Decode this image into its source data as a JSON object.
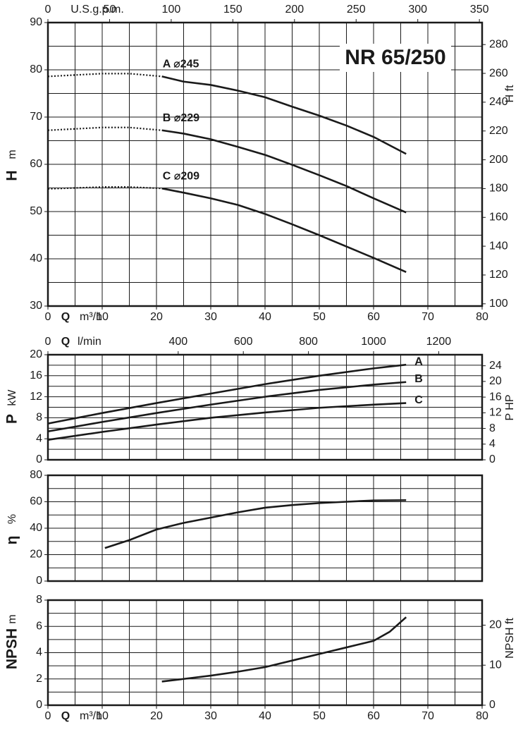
{
  "chart_data": [
    {
      "type": "line",
      "title": "NR 65/250",
      "ylabel": "H",
      "yunit": "m",
      "y2label": "H ft",
      "xlabel": "Q",
      "xunit": "m³/h",
      "top_xlabel": "U.S.g.p.m.",
      "label_at": "start",
      "color": "#1a1a1a",
      "xlim": [
        0,
        80
      ],
      "xticks": [
        0,
        10,
        20,
        30,
        40,
        50,
        60,
        70,
        80
      ],
      "xgrid": [
        5,
        10,
        15,
        20,
        25,
        30,
        35,
        40,
        45,
        50,
        55,
        60,
        65,
        70,
        75
      ],
      "ylim": [
        30,
        90
      ],
      "yticks": [
        30,
        40,
        50,
        60,
        70,
        80,
        90
      ],
      "ygrid": [
        35,
        40,
        45,
        50,
        55,
        60,
        65,
        70,
        75,
        80,
        85
      ],
      "y2lim": [
        98.43,
        295.28
      ],
      "y2ticks": [
        100,
        120,
        140,
        160,
        180,
        200,
        220,
        240,
        260,
        280
      ],
      "topxlim": [
        0,
        352.2
      ],
      "topxticks": [
        0,
        50,
        100,
        150,
        200,
        250,
        300,
        350
      ],
      "series": [
        {
          "name": "A ⌀245",
          "style": "solid",
          "x": [
            21,
            25,
            30,
            35,
            40,
            45,
            50,
            55,
            60,
            66
          ],
          "values": [
            78.6,
            77.5,
            76.8,
            75.6,
            74.2,
            72.2,
            70.3,
            68.2,
            65.8,
            62.2
          ]
        },
        {
          "style": "dotted",
          "x": [
            0,
            5,
            10,
            15,
            21
          ],
          "values": [
            78.6,
            78.9,
            79.2,
            79.2,
            78.6
          ]
        },
        {
          "name": "B ⌀229",
          "style": "solid",
          "x": [
            21,
            25,
            30,
            35,
            40,
            45,
            50,
            55,
            60,
            66
          ],
          "values": [
            67.2,
            66.5,
            65.3,
            63.7,
            62.0,
            59.9,
            57.7,
            55.4,
            52.8,
            49.8
          ]
        },
        {
          "style": "dotted",
          "x": [
            0,
            5,
            10,
            15,
            21
          ],
          "values": [
            67.2,
            67.5,
            67.8,
            67.8,
            67.2
          ]
        },
        {
          "name": "C ⌀209",
          "style": "solid",
          "x": [
            21,
            25,
            30,
            35,
            40,
            45,
            50,
            55,
            60,
            66
          ],
          "values": [
            54.9,
            54.0,
            52.8,
            51.4,
            49.5,
            47.3,
            45.0,
            42.6,
            40.2,
            37.2
          ]
        },
        {
          "style": "dotted",
          "x": [
            0,
            5,
            10,
            15,
            21
          ],
          "values": [
            54.8,
            55.0,
            55.2,
            55.2,
            54.9
          ]
        }
      ]
    },
    {
      "type": "line",
      "ylabel": "P",
      "yunit": "kW",
      "y2label": "P HP",
      "top_xlabel": "Q",
      "top_xunit": "l/min",
      "label_at": "end",
      "color": "#1a1a1a",
      "xlim": [
        0,
        80
      ],
      "xgrid": [
        5,
        10,
        15,
        20,
        25,
        30,
        35,
        40,
        45,
        50,
        55,
        60,
        65,
        70,
        75
      ],
      "ylim": [
        0,
        20
      ],
      "yticks": [
        0,
        4,
        8,
        12,
        16,
        20
      ],
      "ygrid": [
        2,
        4,
        6,
        8,
        10,
        12,
        14,
        16,
        18
      ],
      "y2lim": [
        0,
        26.82
      ],
      "y2ticks": [
        0,
        4,
        8,
        12,
        16,
        20,
        24
      ],
      "topxlim": [
        0,
        1333.3
      ],
      "topxticks": [
        0,
        400,
        600,
        800,
        1000,
        1200
      ],
      "series": [
        {
          "name": "A",
          "style": "solid",
          "x": [
            0,
            10,
            20,
            30,
            40,
            50,
            60,
            66
          ],
          "values": [
            6.9,
            8.9,
            10.8,
            12.6,
            14.4,
            16.0,
            17.4,
            18.1
          ]
        },
        {
          "name": "B",
          "style": "solid",
          "x": [
            0,
            10,
            20,
            30,
            40,
            50,
            60,
            66
          ],
          "values": [
            5.4,
            7.2,
            8.9,
            10.5,
            12.0,
            13.3,
            14.3,
            14.8
          ]
        },
        {
          "name": "C",
          "style": "solid",
          "x": [
            0,
            10,
            20,
            30,
            40,
            50,
            60,
            66
          ],
          "values": [
            3.8,
            5.3,
            6.7,
            8.0,
            9.0,
            9.9,
            10.5,
            10.8
          ]
        }
      ]
    },
    {
      "type": "line",
      "ylabel": "η",
      "yunit": "%",
      "color": "#1a1a1a",
      "xlim": [
        0,
        80
      ],
      "xgrid": [
        5,
        10,
        15,
        20,
        25,
        30,
        35,
        40,
        45,
        50,
        55,
        60,
        65,
        70,
        75
      ],
      "ylim": [
        0,
        80
      ],
      "yticks": [
        0,
        20,
        40,
        60,
        80
      ],
      "ygrid": [
        10,
        20,
        30,
        40,
        50,
        60,
        70
      ],
      "series": [
        {
          "style": "solid",
          "x": [
            10.5,
            15,
            20,
            25,
            30,
            35,
            40,
            45,
            50,
            55,
            60,
            66
          ],
          "values": [
            25,
            31,
            39,
            44,
            48,
            52,
            55.5,
            57.5,
            59,
            60,
            61,
            61.2
          ]
        }
      ]
    },
    {
      "type": "line",
      "ylabel": "NPSH",
      "yunit": "m",
      "y2label": "NPSH ft",
      "xlabel": "Q",
      "xunit": "m³/h",
      "color": "#1a1a1a",
      "xlim": [
        0,
        80
      ],
      "xticks": [
        0,
        10,
        20,
        30,
        40,
        50,
        60,
        70,
        80
      ],
      "xgrid": [
        5,
        10,
        15,
        20,
        25,
        30,
        35,
        40,
        45,
        50,
        55,
        60,
        65,
        70,
        75
      ],
      "ylim": [
        0,
        8
      ],
      "yticks": [
        0,
        2,
        4,
        6,
        8
      ],
      "ygrid": [
        1,
        2,
        3,
        4,
        5,
        6,
        7
      ],
      "y2lim": [
        0,
        26.25
      ],
      "y2ticks": [
        0,
        10,
        20
      ],
      "series": [
        {
          "style": "solid",
          "x": [
            21,
            25,
            30,
            35,
            40,
            45,
            50,
            55,
            60,
            63,
            66
          ],
          "values": [
            1.8,
            2.0,
            2.25,
            2.55,
            2.9,
            3.4,
            3.9,
            4.4,
            4.9,
            5.6,
            6.7
          ]
        }
      ]
    }
  ]
}
